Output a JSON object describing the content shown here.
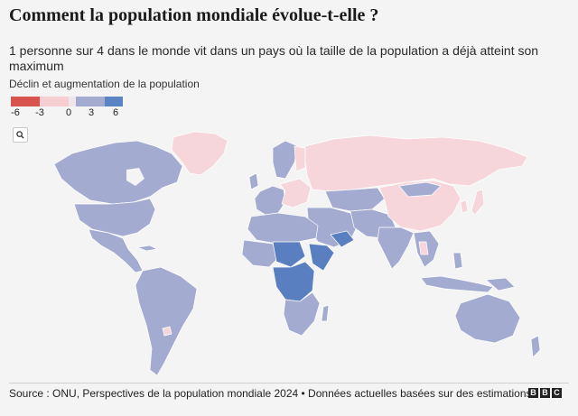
{
  "header": {
    "title": "Comment la population mondiale évolue-t-elle ?",
    "subtitle": "1 personne sur 4 dans le monde vit dans un pays où la taille de la population a déjà atteint son maximum"
  },
  "legend": {
    "title": "Déclin et augmentation de la population",
    "ticks": [
      "-6",
      "-3",
      "0",
      "3",
      "6"
    ],
    "colors": {
      "strong_decline": "#d9534f",
      "decline": "#f7cfd3",
      "slight": "#eee6ea",
      "growth": "#9ea8cc",
      "strong_growth": "#5b84c4"
    }
  },
  "controls": {
    "zoom_icon": "search-icon"
  },
  "map": {
    "land_default_color": "#a3acd0",
    "declining_color": "#f6d6db",
    "strong_growth_color": "#5a7fc0",
    "border_color": "#ffffff"
  },
  "footer": {
    "source": "Source : ONU, Perspectives de la population mondiale 2024 • Données actuelles basées sur des estimations",
    "logo_letters": [
      "B",
      "B",
      "C"
    ]
  }
}
